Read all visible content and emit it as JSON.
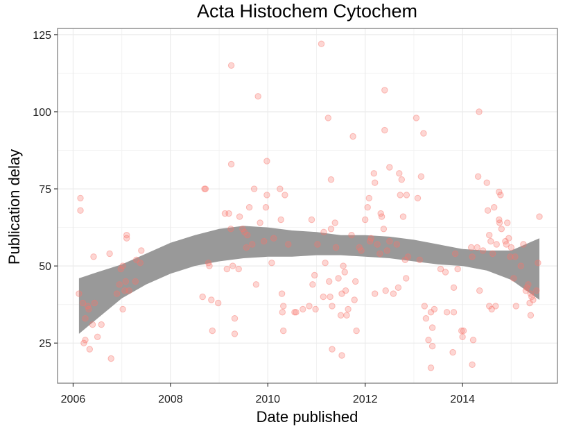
{
  "chart_data": {
    "type": "scatter",
    "title": "Acta Histochem Cytochem",
    "xlabel": "Date published",
    "ylabel": "Publication delay",
    "xlim": [
      2005.68,
      2015.95
    ],
    "ylim": [
      12,
      127
    ],
    "xticks": [
      2006,
      2008,
      2010,
      2012,
      2014
    ],
    "xtick_labels": [
      "2006",
      "2008",
      "2010",
      "2012",
      "2014"
    ],
    "yticks": [
      25,
      50,
      75,
      100,
      125
    ],
    "ytick_labels": [
      "25",
      "50",
      "75",
      "100",
      "125"
    ],
    "grid": true,
    "legend": "none",
    "point_color": "#f8766d",
    "band_color": "#999999",
    "points": [
      [
        2006.12,
        41
      ],
      [
        2006.15,
        72
      ],
      [
        2006.15,
        68
      ],
      [
        2006.2,
        38
      ],
      [
        2006.22,
        25
      ],
      [
        2006.25,
        26
      ],
      [
        2006.25,
        33
      ],
      [
        2006.3,
        37
      ],
      [
        2006.32,
        36
      ],
      [
        2006.34,
        23
      ],
      [
        2006.4,
        31
      ],
      [
        2006.42,
        53
      ],
      [
        2006.44,
        38
      ],
      [
        2006.5,
        27
      ],
      [
        2006.58,
        31
      ],
      [
        2006.75,
        54
      ],
      [
        2006.78,
        20
      ],
      [
        2006.9,
        41
      ],
      [
        2006.95,
        44
      ],
      [
        2006.98,
        49
      ],
      [
        2007.02,
        50
      ],
      [
        2007.02,
        36
      ],
      [
        2007.06,
        42
      ],
      [
        2007.08,
        45
      ],
      [
        2007.1,
        60
      ],
      [
        2007.1,
        59
      ],
      [
        2007.15,
        42
      ],
      [
        2007.28,
        45
      ],
      [
        2007.3,
        52
      ],
      [
        2007.38,
        51
      ],
      [
        2007.4,
        55
      ],
      [
        2008.66,
        40
      ],
      [
        2008.7,
        75
      ],
      [
        2008.72,
        75
      ],
      [
        2008.78,
        51
      ],
      [
        2008.8,
        50
      ],
      [
        2008.84,
        39
      ],
      [
        2008.86,
        29
      ],
      [
        2008.98,
        38
      ],
      [
        2009.12,
        67
      ],
      [
        2009.16,
        49
      ],
      [
        2009.2,
        67
      ],
      [
        2009.24,
        62
      ],
      [
        2009.25,
        83
      ],
      [
        2009.25,
        115
      ],
      [
        2009.28,
        50
      ],
      [
        2009.32,
        28
      ],
      [
        2009.32,
        33
      ],
      [
        2009.4,
        49
      ],
      [
        2009.42,
        66
      ],
      [
        2009.48,
        62
      ],
      [
        2009.52,
        61
      ],
      [
        2009.56,
        56
      ],
      [
        2009.58,
        60
      ],
      [
        2009.62,
        69
      ],
      [
        2009.68,
        57
      ],
      [
        2009.72,
        75
      ],
      [
        2009.76,
        44
      ],
      [
        2009.8,
        105
      ],
      [
        2009.84,
        64
      ],
      [
        2009.92,
        58
      ],
      [
        2009.96,
        69
      ],
      [
        2009.98,
        73
      ],
      [
        2009.98,
        84
      ],
      [
        2010.08,
        51
      ],
      [
        2010.12,
        59
      ],
      [
        2010.25,
        75
      ],
      [
        2010.27,
        65
      ],
      [
        2010.29,
        41
      ],
      [
        2010.3,
        35
      ],
      [
        2010.32,
        37
      ],
      [
        2010.32,
        29
      ],
      [
        2010.35,
        73
      ],
      [
        2010.42,
        57
      ],
      [
        2010.55,
        35
      ],
      [
        2010.58,
        35
      ],
      [
        2010.72,
        36
      ],
      [
        2010.85,
        37
      ],
      [
        2010.9,
        65
      ],
      [
        2010.92,
        44
      ],
      [
        2010.96,
        47
      ],
      [
        2010.98,
        36
      ],
      [
        2011.02,
        57
      ],
      [
        2011.1,
        122
      ],
      [
        2011.14,
        40
      ],
      [
        2011.15,
        61
      ],
      [
        2011.18,
        51
      ],
      [
        2011.24,
        98
      ],
      [
        2011.26,
        45
      ],
      [
        2011.28,
        40
      ],
      [
        2011.3,
        78
      ],
      [
        2011.3,
        62
      ],
      [
        2011.32,
        37
      ],
      [
        2011.32,
        23
      ],
      [
        2011.38,
        64
      ],
      [
        2011.4,
        56
      ],
      [
        2011.45,
        46
      ],
      [
        2011.5,
        34
      ],
      [
        2011.52,
        41
      ],
      [
        2011.52,
        21
      ],
      [
        2011.55,
        50
      ],
      [
        2011.58,
        48
      ],
      [
        2011.6,
        42
      ],
      [
        2011.62,
        34
      ],
      [
        2011.65,
        36
      ],
      [
        2011.72,
        60
      ],
      [
        2011.75,
        92
      ],
      [
        2011.78,
        39
      ],
      [
        2011.8,
        45
      ],
      [
        2011.82,
        29
      ],
      [
        2011.88,
        56
      ],
      [
        2011.92,
        55
      ],
      [
        2012.0,
        65
      ],
      [
        2012.05,
        69
      ],
      [
        2012.08,
        72
      ],
      [
        2012.1,
        58
      ],
      [
        2012.12,
        59
      ],
      [
        2012.18,
        80
      ],
      [
        2012.2,
        77
      ],
      [
        2012.2,
        41
      ],
      [
        2012.25,
        57
      ],
      [
        2012.3,
        54
      ],
      [
        2012.32,
        67
      ],
      [
        2012.34,
        66
      ],
      [
        2012.38,
        62
      ],
      [
        2012.4,
        94
      ],
      [
        2012.4,
        107
      ],
      [
        2012.42,
        42
      ],
      [
        2012.45,
        55
      ],
      [
        2012.5,
        58
      ],
      [
        2012.5,
        82
      ],
      [
        2012.58,
        41
      ],
      [
        2012.65,
        57
      ],
      [
        2012.68,
        43
      ],
      [
        2012.7,
        80
      ],
      [
        2012.72,
        73
      ],
      [
        2012.75,
        78
      ],
      [
        2012.78,
        66
      ],
      [
        2012.82,
        52
      ],
      [
        2012.84,
        46
      ],
      [
        2012.85,
        73
      ],
      [
        2012.88,
        53
      ],
      [
        2013.05,
        98
      ],
      [
        2013.08,
        72
      ],
      [
        2013.12,
        52
      ],
      [
        2013.15,
        79
      ],
      [
        2013.2,
        93
      ],
      [
        2013.22,
        37
      ],
      [
        2013.25,
        33
      ],
      [
        2013.3,
        26
      ],
      [
        2013.35,
        35
      ],
      [
        2013.35,
        17
      ],
      [
        2013.38,
        30
      ],
      [
        2013.38,
        24
      ],
      [
        2013.42,
        36
      ],
      [
        2013.55,
        49
      ],
      [
        2013.65,
        48
      ],
      [
        2013.68,
        35
      ],
      [
        2013.8,
        22
      ],
      [
        2013.82,
        35
      ],
      [
        2013.82,
        43
      ],
      [
        2013.85,
        54
      ],
      [
        2013.9,
        49
      ],
      [
        2013.98,
        29
      ],
      [
        2014.0,
        27
      ],
      [
        2014.02,
        29
      ],
      [
        2014.18,
        56
      ],
      [
        2014.2,
        18
      ],
      [
        2014.2,
        53
      ],
      [
        2014.22,
        26
      ],
      [
        2014.3,
        56
      ],
      [
        2014.32,
        79
      ],
      [
        2014.34,
        100
      ],
      [
        2014.35,
        42
      ],
      [
        2014.42,
        55
      ],
      [
        2014.5,
        77
      ],
      [
        2014.52,
        68
      ],
      [
        2014.55,
        60
      ],
      [
        2014.55,
        37
      ],
      [
        2014.58,
        58
      ],
      [
        2014.6,
        36
      ],
      [
        2014.62,
        54
      ],
      [
        2014.65,
        69
      ],
      [
        2014.68,
        37
      ],
      [
        2014.7,
        57
      ],
      [
        2014.75,
        74
      ],
      [
        2014.75,
        65
      ],
      [
        2014.76,
        64
      ],
      [
        2014.78,
        73
      ],
      [
        2014.8,
        62
      ],
      [
        2014.88,
        58
      ],
      [
        2014.9,
        57
      ],
      [
        2014.92,
        64
      ],
      [
        2014.95,
        59
      ],
      [
        2014.98,
        53
      ],
      [
        2015.0,
        56
      ],
      [
        2015.05,
        46
      ],
      [
        2015.08,
        53
      ],
      [
        2015.1,
        37
      ],
      [
        2015.2,
        50
      ],
      [
        2015.25,
        57
      ],
      [
        2015.3,
        42
      ],
      [
        2015.32,
        43
      ],
      [
        2015.35,
        44
      ],
      [
        2015.38,
        38
      ],
      [
        2015.4,
        41
      ],
      [
        2015.4,
        34
      ],
      [
        2015.42,
        40
      ],
      [
        2015.45,
        39
      ],
      [
        2015.52,
        42
      ],
      [
        2015.55,
        51
      ],
      [
        2015.58,
        66
      ]
    ],
    "confidence_band": {
      "x": [
        2006.12,
        2006.5,
        2007.0,
        2007.5,
        2008.0,
        2008.5,
        2009.0,
        2009.5,
        2010.0,
        2010.5,
        2011.0,
        2011.5,
        2012.0,
        2012.5,
        2013.0,
        2013.5,
        2014.0,
        2014.5,
        2015.0,
        2015.58
      ],
      "upper": [
        46,
        48,
        50.5,
        54,
        57.5,
        60,
        62,
        63,
        62.5,
        61.5,
        61,
        60,
        60,
        59.5,
        58.5,
        57,
        55.5,
        55,
        55,
        59
      ],
      "lower": [
        28,
        33,
        39.5,
        44,
        47.5,
        50,
        51.5,
        52.5,
        53,
        53,
        53.5,
        53.5,
        53,
        52.5,
        51.5,
        50.5,
        50,
        48.5,
        45.5,
        39
      ]
    }
  }
}
